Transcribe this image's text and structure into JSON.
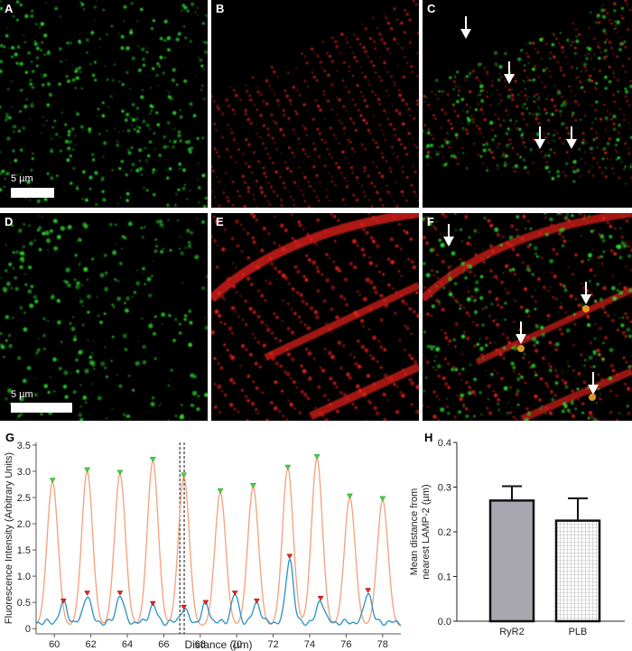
{
  "figure": {
    "panels": [
      {
        "id": "A",
        "channel": "green"
      },
      {
        "id": "B",
        "channel": "red"
      },
      {
        "id": "C",
        "channel": "merge"
      },
      {
        "id": "D",
        "channel": "green"
      },
      {
        "id": "E",
        "channel": "red"
      },
      {
        "id": "F",
        "channel": "merge"
      }
    ],
    "scale_top": "5 µm",
    "scale_bottom": "5 µm",
    "label_g": "G",
    "label_h": "H",
    "colors": {
      "green": "#2fd42f",
      "red": "#e8231f",
      "orange_line": "#f4a07a",
      "blue_line": "#2a8fc4"
    }
  },
  "chart_data": [
    {
      "type": "line",
      "panel": "G",
      "xlabel": "Distance (µm)",
      "ylabel": "Fluorescence Intensity (Arbitrary Units)",
      "xlim": [
        59,
        79
      ],
      "ylim": [
        -0.1,
        3.55
      ],
      "xticks": [
        60,
        62,
        64,
        66,
        68,
        70,
        72,
        74,
        76,
        78
      ],
      "xtick_labels": [
        "60",
        "62",
        "64",
        "66",
        "68",
        "70",
        "72",
        "74",
        "76",
        "78"
      ],
      "yticks": [
        0,
        0.5,
        1.0,
        1.5,
        2.0,
        2.5,
        3.0,
        3.5
      ],
      "ytick_labels": [
        "0",
        "0.5",
        "1.0",
        "1.5",
        "2.0",
        "2.5",
        "3.0",
        "3.5"
      ],
      "dashed_line_x": 67.0,
      "series": [
        {
          "color": "#f4a07a",
          "peaks_x": [
            59.9,
            61.8,
            63.6,
            65.4,
            67.1,
            69.1,
            70.9,
            72.8,
            74.4,
            76.2,
            78.0
          ],
          "peaks_y": [
            2.8,
            3.0,
            2.95,
            3.2,
            2.9,
            2.6,
            2.7,
            3.05,
            3.25,
            2.5,
            2.45
          ]
        },
        {
          "color": "#2a8fc4",
          "peaks_x": [
            60.5,
            61.8,
            63.6,
            65.4,
            67.1,
            68.3,
            69.9,
            71.1,
            72.9,
            74.6,
            77.2
          ],
          "peaks_y": [
            0.5,
            0.65,
            0.65,
            0.45,
            0.38,
            0.47,
            0.65,
            0.5,
            1.35,
            0.55,
            0.7
          ]
        }
      ]
    },
    {
      "type": "bar",
      "panel": "H",
      "ylabel": "Mean distance from nearest LAMP-2 (µm)",
      "categories": [
        "RyR2",
        "PLB"
      ],
      "values": [
        0.27,
        0.225
      ],
      "errors": [
        0.032,
        0.05
      ],
      "ylim": [
        0,
        0.4
      ],
      "yticks": [
        0.0,
        0.1,
        0.2,
        0.3,
        0.4
      ],
      "ytick_labels": [
        "0.0",
        "0.1",
        "0.2",
        "0.3",
        "0.4"
      ],
      "bar_fills": [
        "#a9a7b0",
        "hatched"
      ]
    }
  ]
}
